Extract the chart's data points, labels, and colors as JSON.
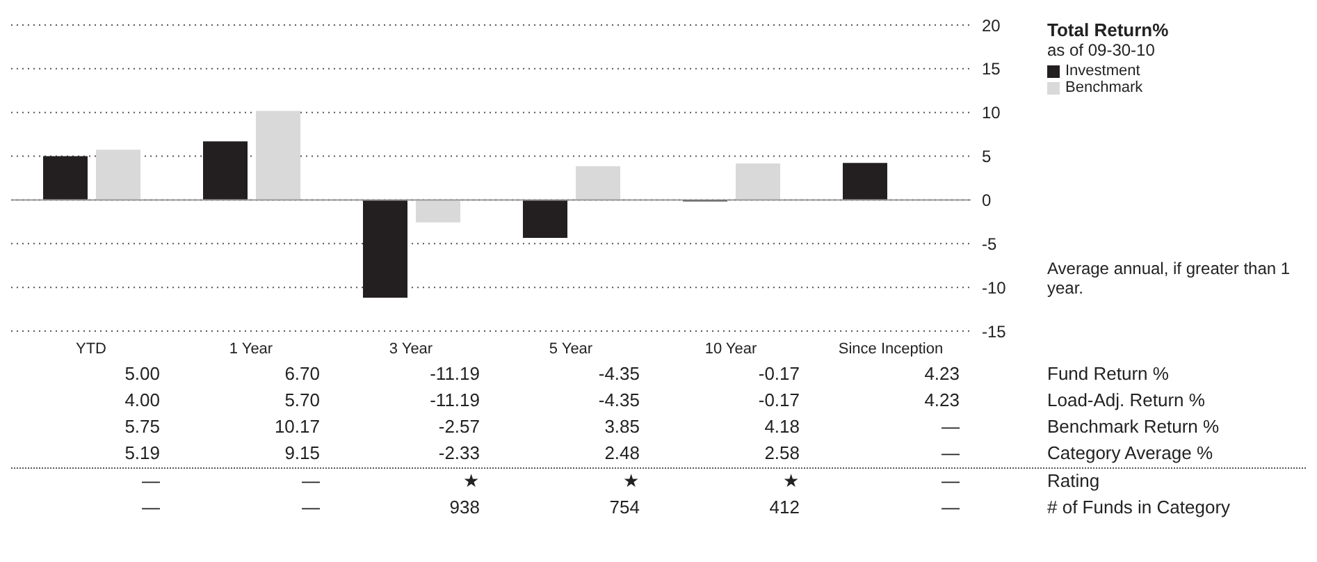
{
  "chart_data": {
    "type": "bar",
    "legend_title": "Total Return%",
    "subtitle": "as of 09-30-10",
    "categories": [
      "YTD",
      "1 Year",
      "3 Year",
      "5 Year",
      "10 Year",
      "Since Inception"
    ],
    "series": [
      {
        "name": "Investment",
        "color": "#231f20",
        "values": [
          5.0,
          6.7,
          -11.19,
          -4.35,
          -0.17,
          4.23
        ]
      },
      {
        "name": "Benchmark",
        "color": "#d9d9d9",
        "values": [
          5.75,
          10.17,
          -2.57,
          3.85,
          4.18,
          null
        ]
      }
    ],
    "ylim": [
      -15,
      20
    ],
    "yticks": [
      -15,
      -10,
      -5,
      0,
      5,
      10,
      15,
      20
    ],
    "grid": "y",
    "legend": "right",
    "annotations": [
      "Average annual, if greater than 1 year.",
      "Fund Return %",
      "5.00",
      "6.70",
      "-11.19",
      "-4.35",
      "-0.17",
      "4.23",
      "Load-Adj. Return %",
      "4.00",
      "5.70",
      "-11.19",
      "-4.35",
      "-0.17",
      "4.23",
      "Benchmark Return %",
      "5.75",
      "10.17",
      "-2.57",
      "3.85",
      "4.18",
      "—",
      "Category Average %",
      "5.19",
      "9.15",
      "-2.33",
      "2.48",
      "2.58",
      "—",
      "Rating",
      "—",
      "—",
      "★",
      "★",
      "★",
      "—",
      "# of Funds in Category",
      "—",
      "—",
      "938",
      "754",
      "412",
      "—"
    ]
  }
}
